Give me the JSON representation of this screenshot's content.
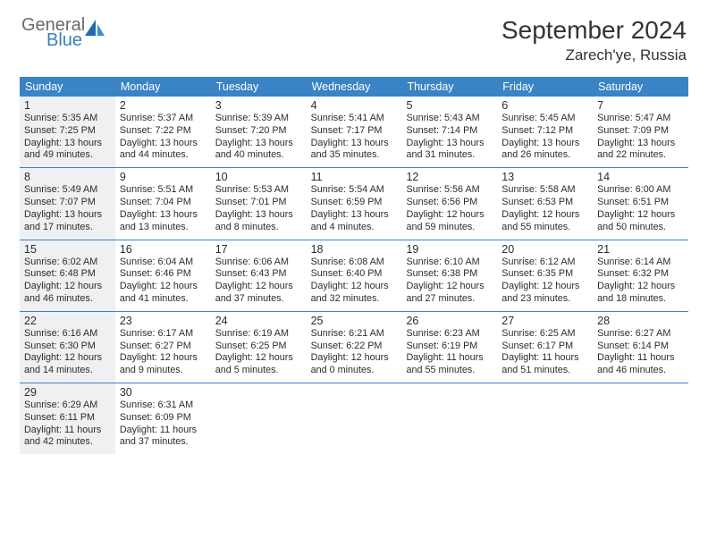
{
  "brand": {
    "top": "General",
    "bottom": "Blue"
  },
  "title": "September 2024",
  "location": "Zarech'ye, Russia",
  "colors": {
    "header_bar": "#3a83c4",
    "shaded_cell": "#eef0f1",
    "text": "#2c2c2c",
    "logo_gray": "#6a6a6a",
    "logo_blue": "#3a7fc0"
  },
  "day_names": [
    "Sunday",
    "Monday",
    "Tuesday",
    "Wednesday",
    "Thursday",
    "Friday",
    "Saturday"
  ],
  "shaded_days": [
    1,
    8,
    15,
    22,
    29
  ],
  "days": [
    {
      "n": 1,
      "sunrise": "5:35 AM",
      "sunset": "7:25 PM",
      "dl": "13 hours and 49 minutes."
    },
    {
      "n": 2,
      "sunrise": "5:37 AM",
      "sunset": "7:22 PM",
      "dl": "13 hours and 44 minutes."
    },
    {
      "n": 3,
      "sunrise": "5:39 AM",
      "sunset": "7:20 PM",
      "dl": "13 hours and 40 minutes."
    },
    {
      "n": 4,
      "sunrise": "5:41 AM",
      "sunset": "7:17 PM",
      "dl": "13 hours and 35 minutes."
    },
    {
      "n": 5,
      "sunrise": "5:43 AM",
      "sunset": "7:14 PM",
      "dl": "13 hours and 31 minutes."
    },
    {
      "n": 6,
      "sunrise": "5:45 AM",
      "sunset": "7:12 PM",
      "dl": "13 hours and 26 minutes."
    },
    {
      "n": 7,
      "sunrise": "5:47 AM",
      "sunset": "7:09 PM",
      "dl": "13 hours and 22 minutes."
    },
    {
      "n": 8,
      "sunrise": "5:49 AM",
      "sunset": "7:07 PM",
      "dl": "13 hours and 17 minutes."
    },
    {
      "n": 9,
      "sunrise": "5:51 AM",
      "sunset": "7:04 PM",
      "dl": "13 hours and 13 minutes."
    },
    {
      "n": 10,
      "sunrise": "5:53 AM",
      "sunset": "7:01 PM",
      "dl": "13 hours and 8 minutes."
    },
    {
      "n": 11,
      "sunrise": "5:54 AM",
      "sunset": "6:59 PM",
      "dl": "13 hours and 4 minutes."
    },
    {
      "n": 12,
      "sunrise": "5:56 AM",
      "sunset": "6:56 PM",
      "dl": "12 hours and 59 minutes."
    },
    {
      "n": 13,
      "sunrise": "5:58 AM",
      "sunset": "6:53 PM",
      "dl": "12 hours and 55 minutes."
    },
    {
      "n": 14,
      "sunrise": "6:00 AM",
      "sunset": "6:51 PM",
      "dl": "12 hours and 50 minutes."
    },
    {
      "n": 15,
      "sunrise": "6:02 AM",
      "sunset": "6:48 PM",
      "dl": "12 hours and 46 minutes."
    },
    {
      "n": 16,
      "sunrise": "6:04 AM",
      "sunset": "6:46 PM",
      "dl": "12 hours and 41 minutes."
    },
    {
      "n": 17,
      "sunrise": "6:06 AM",
      "sunset": "6:43 PM",
      "dl": "12 hours and 37 minutes."
    },
    {
      "n": 18,
      "sunrise": "6:08 AM",
      "sunset": "6:40 PM",
      "dl": "12 hours and 32 minutes."
    },
    {
      "n": 19,
      "sunrise": "6:10 AM",
      "sunset": "6:38 PM",
      "dl": "12 hours and 27 minutes."
    },
    {
      "n": 20,
      "sunrise": "6:12 AM",
      "sunset": "6:35 PM",
      "dl": "12 hours and 23 minutes."
    },
    {
      "n": 21,
      "sunrise": "6:14 AM",
      "sunset": "6:32 PM",
      "dl": "12 hours and 18 minutes."
    },
    {
      "n": 22,
      "sunrise": "6:16 AM",
      "sunset": "6:30 PM",
      "dl": "12 hours and 14 minutes."
    },
    {
      "n": 23,
      "sunrise": "6:17 AM",
      "sunset": "6:27 PM",
      "dl": "12 hours and 9 minutes."
    },
    {
      "n": 24,
      "sunrise": "6:19 AM",
      "sunset": "6:25 PM",
      "dl": "12 hours and 5 minutes."
    },
    {
      "n": 25,
      "sunrise": "6:21 AM",
      "sunset": "6:22 PM",
      "dl": "12 hours and 0 minutes."
    },
    {
      "n": 26,
      "sunrise": "6:23 AM",
      "sunset": "6:19 PM",
      "dl": "11 hours and 55 minutes."
    },
    {
      "n": 27,
      "sunrise": "6:25 AM",
      "sunset": "6:17 PM",
      "dl": "11 hours and 51 minutes."
    },
    {
      "n": 28,
      "sunrise": "6:27 AM",
      "sunset": "6:14 PM",
      "dl": "11 hours and 46 minutes."
    },
    {
      "n": 29,
      "sunrise": "6:29 AM",
      "sunset": "6:11 PM",
      "dl": "11 hours and 42 minutes."
    },
    {
      "n": 30,
      "sunrise": "6:31 AM",
      "sunset": "6:09 PM",
      "dl": "11 hours and 37 minutes."
    }
  ],
  "labels": {
    "sunrise": "Sunrise:",
    "sunset": "Sunset:",
    "daylight": "Daylight:"
  }
}
